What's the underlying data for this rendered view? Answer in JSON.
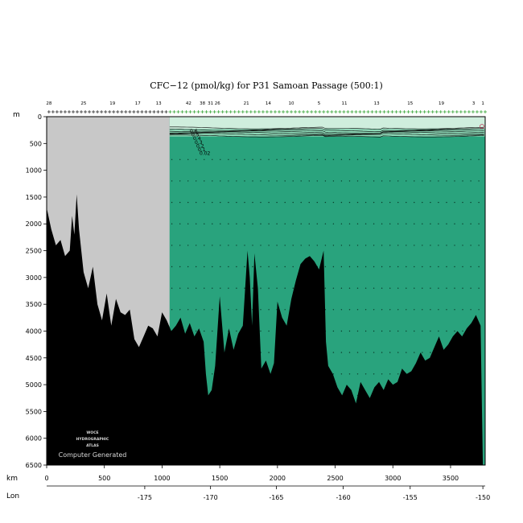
{
  "chart_data": {
    "type": "section-contour",
    "title": "CFC−12 (pmol/kg) for P31 Samoan Passage (500:1)",
    "ylabel": "m",
    "xlabel": "km",
    "second_axis_label": "Lon",
    "ylim": [
      0,
      6500
    ],
    "xlim": [
      0,
      3800
    ],
    "y_ticks": [
      0,
      500,
      1000,
      1500,
      2000,
      2500,
      3000,
      3500,
      4000,
      4500,
      5000,
      5500,
      6000,
      6500
    ],
    "x_ticks": [
      0,
      500,
      1000,
      1500,
      2000,
      2500,
      3000,
      3500
    ],
    "lon_ticks": [
      {
        "km": 850,
        "label": "-175"
      },
      {
        "km": 1420,
        "label": "-170"
      },
      {
        "km": 1990,
        "label": "-165"
      },
      {
        "km": 2570,
        "label": "-160"
      },
      {
        "km": 3150,
        "label": "-155"
      },
      {
        "km": 3780,
        "label": "-150"
      }
    ],
    "station_labels": [
      {
        "km": 20,
        "label": "28"
      },
      {
        "km": 320,
        "label": "25"
      },
      {
        "km": 570,
        "label": "19"
      },
      {
        "km": 790,
        "label": "17"
      },
      {
        "km": 970,
        "label": "13"
      },
      {
        "km": 1230,
        "label": "42"
      },
      {
        "km": 1350,
        "label": "38"
      },
      {
        "km": 1420,
        "label": "31"
      },
      {
        "km": 1480,
        "label": "26"
      },
      {
        "km": 1730,
        "label": "21"
      },
      {
        "km": 1920,
        "label": "14"
      },
      {
        "km": 2120,
        "label": "10"
      },
      {
        "km": 2360,
        "label": "5"
      },
      {
        "km": 2580,
        "label": "11"
      },
      {
        "km": 2860,
        "label": "13"
      },
      {
        "km": 3150,
        "label": "15"
      },
      {
        "km": 3420,
        "label": "19"
      },
      {
        "km": 3700,
        "label": "3"
      },
      {
        "km": 3780,
        "label": "1"
      }
    ],
    "contour_labels": [
      "0.6",
      "0.5",
      "0.4",
      "0.3",
      "0.2",
      "0.1",
      "0.02"
    ],
    "colors": {
      "upper_layer": "#cfeedd",
      "mid_layer": "#8fd9b8",
      "deep_water": "#29a37d",
      "no_data": "#c8c8c8",
      "bathymetry": "#000000",
      "station_marks": "#2ca02c"
    },
    "no_data_region_km": [
      0,
      1065
    ],
    "contour_depths_m": [
      210,
      240,
      265,
      285,
      305,
      330,
      360
    ],
    "bathymetry": {
      "km": [
        0,
        40,
        80,
        120,
        160,
        200,
        220,
        240,
        260,
        280,
        320,
        360,
        400,
        440,
        480,
        520,
        560,
        600,
        640,
        680,
        720,
        760,
        800,
        840,
        880,
        920,
        960,
        1000,
        1040,
        1080,
        1120,
        1160,
        1200,
        1240,
        1280,
        1320,
        1360,
        1380,
        1400,
        1430,
        1460,
        1500,
        1540,
        1580,
        1620,
        1660,
        1700,
        1740,
        1760,
        1780,
        1800,
        1830,
        1860,
        1900,
        1940,
        1970,
        2000,
        2040,
        2080,
        2120,
        2160,
        2200,
        2240,
        2280,
        2320,
        2360,
        2400,
        2420,
        2440,
        2480,
        2520,
        2560,
        2600,
        2640,
        2680,
        2720,
        2760,
        2800,
        2840,
        2880,
        2920,
        2960,
        3000,
        3040,
        3080,
        3120,
        3160,
        3200,
        3240,
        3280,
        3320,
        3360,
        3400,
        3440,
        3480,
        3520,
        3560,
        3600,
        3640,
        3680,
        3720,
        3760,
        3780,
        3800
      ],
      "depth": [
        1700,
        2100,
        2400,
        2300,
        2600,
        2500,
        1850,
        2200,
        1450,
        2100,
        2900,
        3200,
        2800,
        3500,
        3800,
        3300,
        3900,
        3400,
        3650,
        3700,
        3600,
        4150,
        4300,
        4100,
        3900,
        3950,
        4100,
        3650,
        3800,
        4000,
        3900,
        3750,
        4050,
        3850,
        4100,
        3950,
        4200,
        4800,
        5200,
        5100,
        4650,
        3350,
        4400,
        3950,
        4350,
        4050,
        3900,
        2500,
        3000,
        3900,
        2550,
        3200,
        4700,
        4550,
        4800,
        4600,
        3450,
        3750,
        3900,
        3400,
        3050,
        2750,
        2650,
        2600,
        2700,
        2850,
        2500,
        4200,
        4650,
        4800,
        5050,
        5200,
        5000,
        5100,
        5350,
        4950,
        5100,
        5250,
        5050,
        4950,
        5100,
        4900,
        5000,
        4950,
        4700,
        4800,
        4750,
        4600,
        4400,
        4550,
        4500,
        4300,
        4100,
        4350,
        4250,
        4100,
        4000,
        4100,
        3950,
        3850,
        3700,
        3900,
        6500,
        6500
      ]
    }
  },
  "credit": {
    "line1": "WOCE",
    "line2": "HYDROGRAPHIC",
    "line3": "ATLAS",
    "line4": "Computer Generated"
  }
}
